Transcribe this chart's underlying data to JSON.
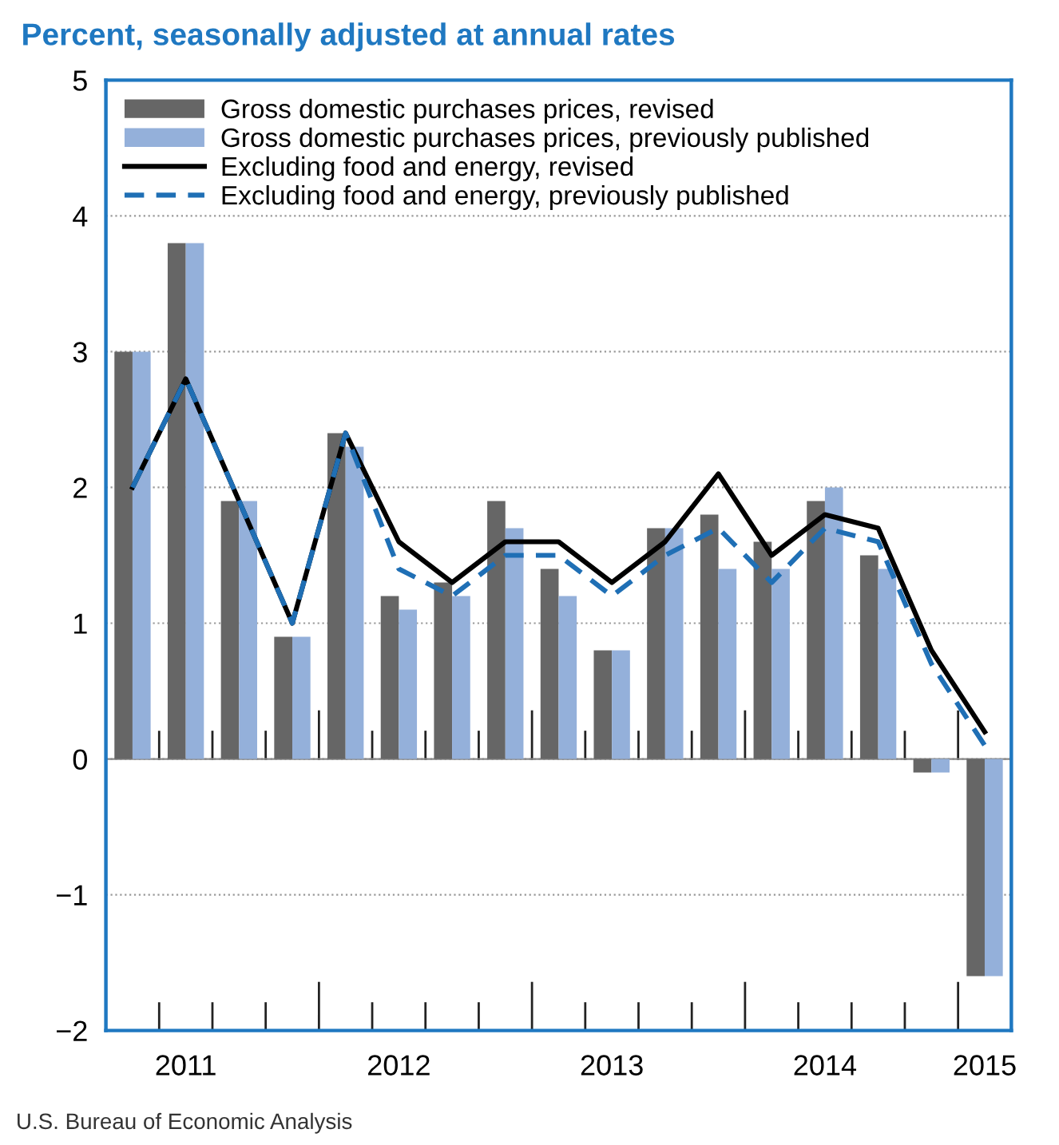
{
  "chart_data": {
    "type": "bar",
    "title": "Percent, seasonally adjusted at annual rates",
    "categories": [
      null,
      "2011",
      null,
      null,
      null,
      "2012",
      null,
      null,
      null,
      "2013",
      null,
      null,
      null,
      "2014",
      null,
      null,
      "2015"
    ],
    "ylim": [
      -2,
      5
    ],
    "yticks": [
      {
        "value": -2,
        "label": "−2"
      },
      {
        "value": -1,
        "label": "−1"
      },
      0,
      1,
      2,
      3,
      4,
      5
    ],
    "grid": "y",
    "legend": "top left",
    "series": [
      {
        "name": "Gross domestic purchases prices, revised",
        "color": "#666666",
        "values": [
          3.0,
          3.8,
          1.9,
          0.9,
          2.4,
          1.2,
          1.3,
          1.9,
          1.4,
          0.8,
          1.7,
          1.8,
          1.6,
          1.9,
          1.5,
          -0.1,
          -1.6
        ]
      },
      {
        "name": "Gross domestic purchases prices, previously published",
        "color": "#94b0da",
        "values": [
          3.0,
          3.8,
          1.9,
          0.9,
          2.3,
          1.1,
          1.2,
          1.7,
          1.2,
          0.8,
          1.7,
          1.4,
          1.4,
          2.0,
          1.4,
          -0.1,
          -1.6
        ]
      },
      {
        "name": "Excluding food and energy, revised",
        "type": "line",
        "line_style": "solid",
        "color": "#000000",
        "values": [
          2.0,
          2.8,
          1.9,
          1.0,
          2.4,
          1.6,
          1.3,
          1.6,
          1.6,
          1.3,
          1.6,
          2.1,
          1.5,
          1.8,
          1.7,
          0.8,
          0.2
        ]
      },
      {
        "name": "Excluding food and energy, previously published",
        "type": "line",
        "line_style": "dashed",
        "color": "#1f6fb5",
        "values": [
          2.0,
          2.8,
          1.9,
          1.0,
          2.4,
          1.4,
          1.2,
          1.5,
          1.5,
          1.2,
          1.5,
          1.7,
          1.3,
          1.7,
          1.6,
          0.7,
          0.1
        ]
      }
    ],
    "annotations": [
      "U.S. Bureau of Economic Analysis"
    ]
  }
}
